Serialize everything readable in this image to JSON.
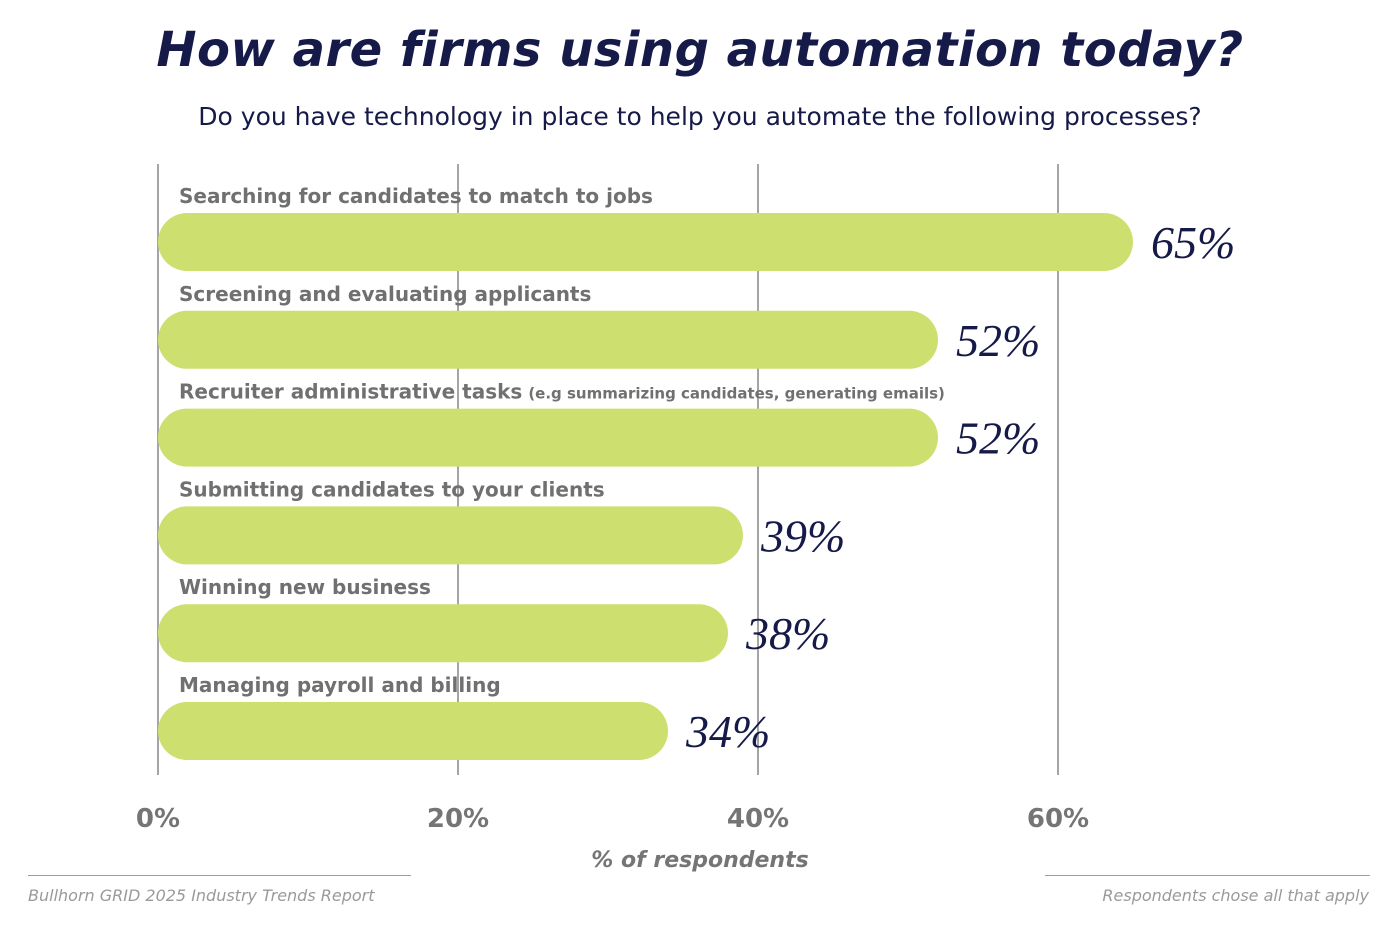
{
  "chart_data": {
    "type": "bar",
    "orientation": "horizontal",
    "title": "How are firms using automation today?",
    "subtitle": "Do you have technology in place to help you automate the following processes?",
    "categories": [
      {
        "label": "Searching for candidates to match to jobs",
        "note": ""
      },
      {
        "label": "Screening and evaluating applicants",
        "note": ""
      },
      {
        "label": "Recruiter administrative tasks",
        "note": "(e.g summarizing candidates, generating emails)"
      },
      {
        "label": "Submitting candidates to your clients",
        "note": ""
      },
      {
        "label": "Winning new business",
        "note": ""
      },
      {
        "label": "Managing payroll and billing",
        "note": ""
      }
    ],
    "values": [
      65,
      52,
      52,
      39,
      38,
      34
    ],
    "value_labels": [
      "65%",
      "52%",
      "52%",
      "39%",
      "38%",
      "34%"
    ],
    "xlabel": "% of respondents",
    "xticks": [
      0,
      20,
      40,
      60
    ],
    "xtick_labels": [
      "0%",
      "20%",
      "40%",
      "60%"
    ],
    "xlim": [
      0,
      60
    ],
    "grid": true,
    "colors": {
      "bar": "#cde06f",
      "title": "#151a48",
      "value_label": "#151a48",
      "category_label": "#707070",
      "axis_text": "#757575",
      "grid": "#a5a5a5"
    }
  },
  "footer": {
    "source": "Bullhorn GRID 2025 Industry Trends Report",
    "note": "Respondents chose all that apply"
  }
}
